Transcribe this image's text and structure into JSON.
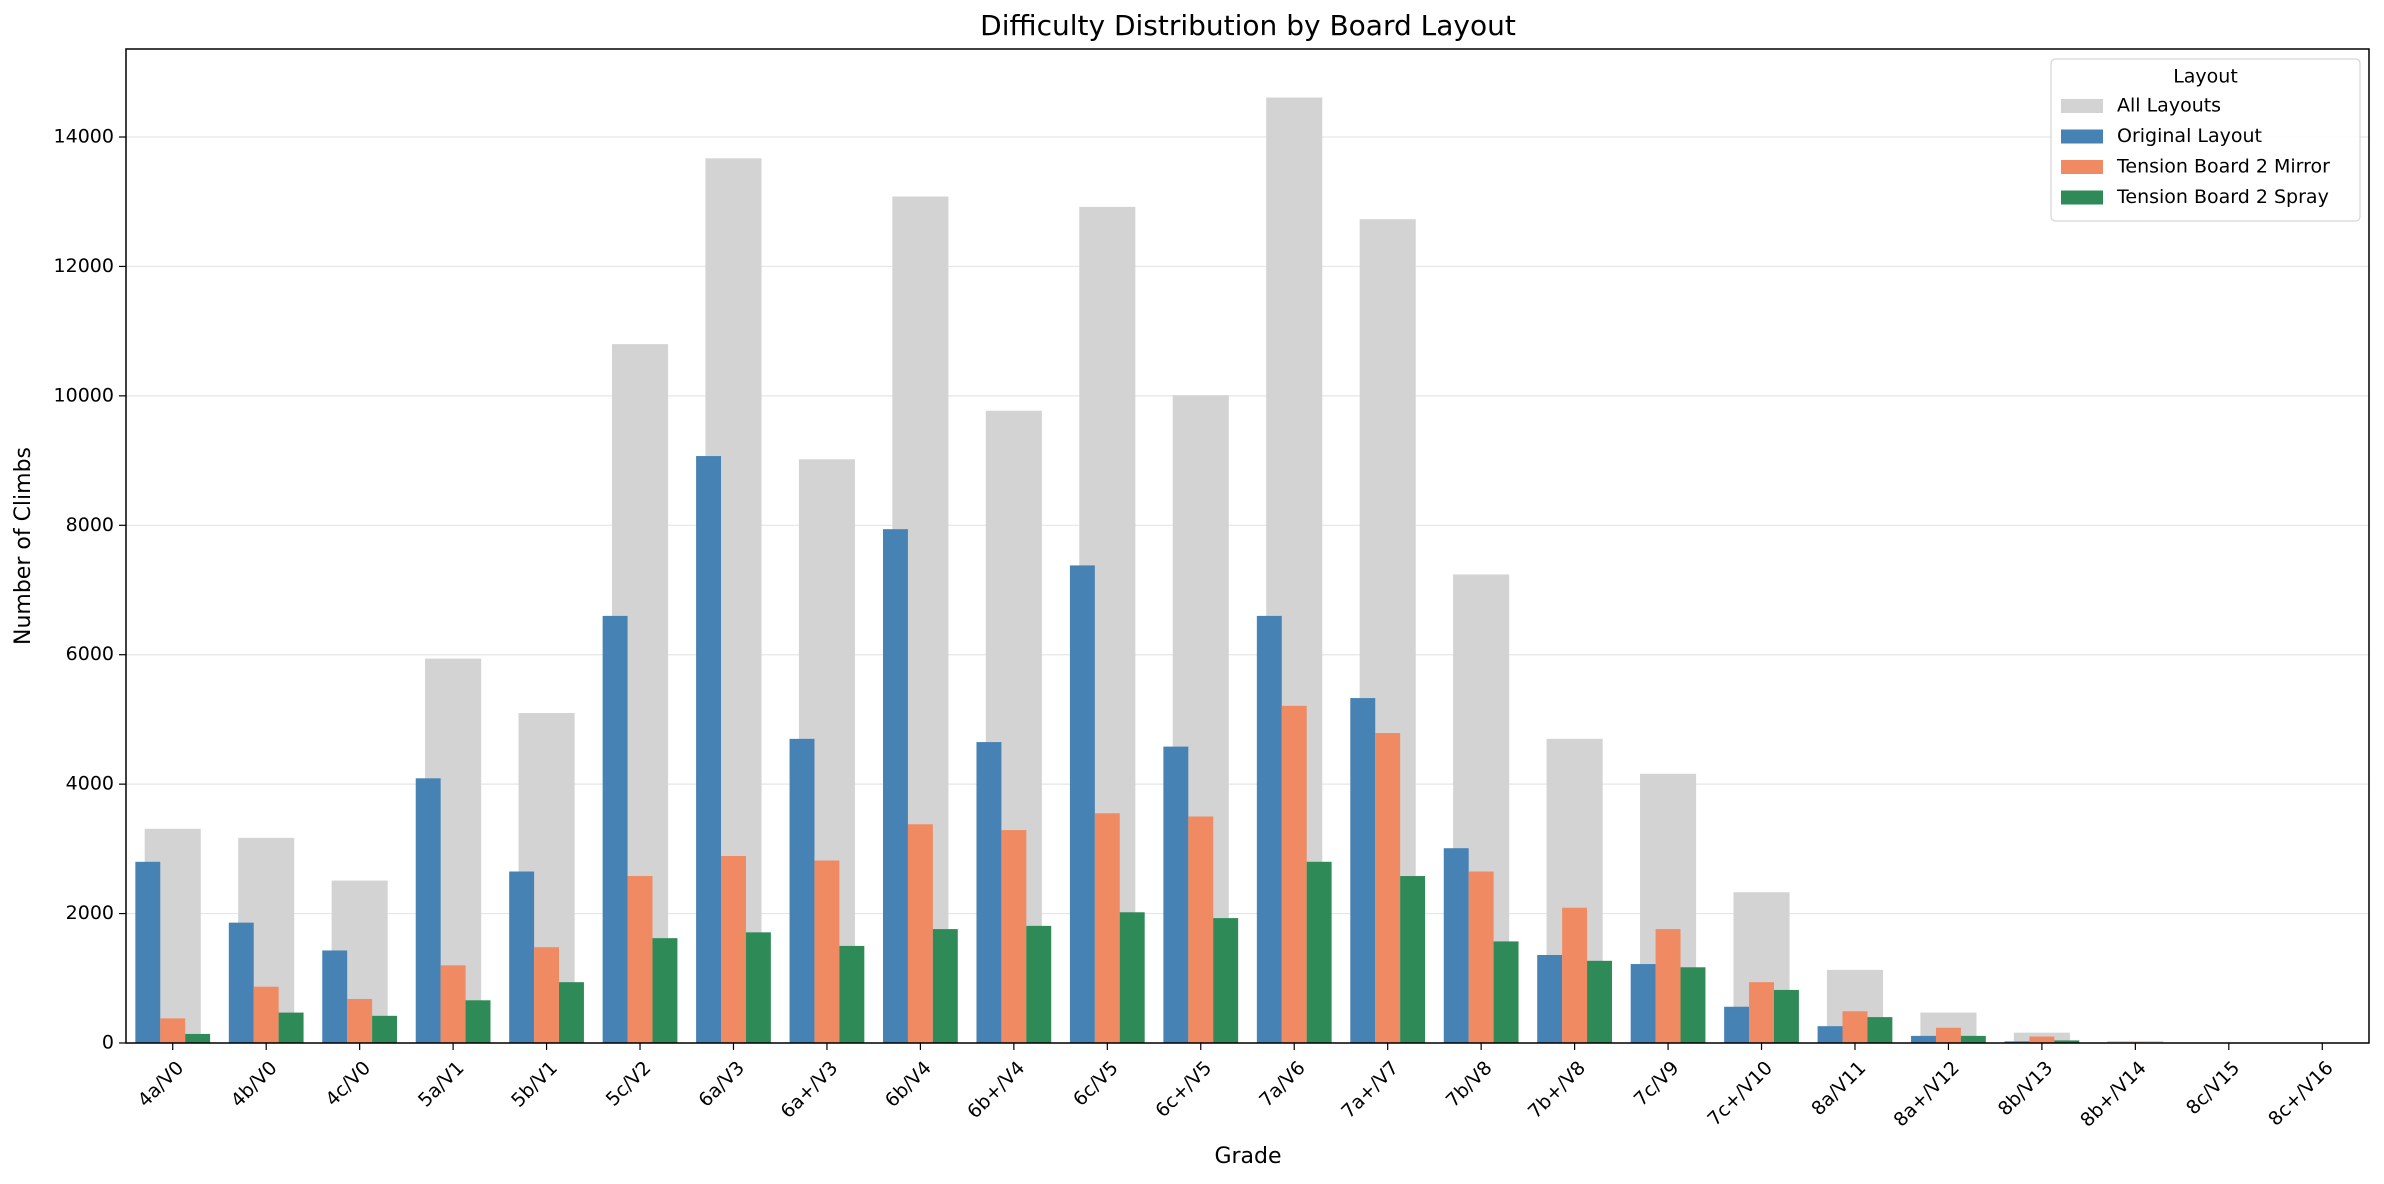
{
  "chart_data": {
    "type": "bar",
    "title": "Difficulty Distribution by Board Layout",
    "x_label": "Grade",
    "y_label": "Number of Climbs",
    "legend_title": "Layout",
    "legend_position": "upper right",
    "grid": true,
    "categories": [
      "4a/V0",
      "4b/V0",
      "4c/V0",
      "5a/V1",
      "5b/V1",
      "5c/V2",
      "6a/V3",
      "6a+/V3",
      "6b/V4",
      "6b+/V4",
      "6c/V5",
      "6c+/V5",
      "7a/V6",
      "7a+/V7",
      "7b/V8",
      "7b+/V8",
      "7c/V9",
      "7c+/V10",
      "8a/V11",
      "8a+/V12",
      "8b/V13",
      "8b+/V14",
      "8c/V15",
      "8c+/V16"
    ],
    "series": [
      {
        "name": "All Layouts",
        "color": "#d3d3d3",
        "values": [
          3310,
          3170,
          2510,
          5940,
          5100,
          10800,
          13670,
          9020,
          13080,
          9770,
          12920,
          10010,
          14610,
          12730,
          7240,
          4700,
          4160,
          2330,
          1130,
          470,
          160,
          30,
          5,
          3
        ]
      },
      {
        "name": "Original Layout",
        "color": "#4682b4",
        "values": [
          2800,
          1860,
          1430,
          4090,
          2650,
          6600,
          9070,
          4700,
          7940,
          4650,
          7380,
          4580,
          6600,
          5330,
          3010,
          1360,
          1220,
          560,
          260,
          110,
          25,
          5,
          1,
          1
        ]
      },
      {
        "name": "Tension Board 2 Mirror",
        "color": "#ef8a62",
        "values": [
          380,
          870,
          680,
          1200,
          1480,
          2580,
          2890,
          2820,
          3380,
          3290,
          3550,
          3500,
          5210,
          4790,
          2650,
          2090,
          1760,
          940,
          490,
          235,
          100,
          10,
          2,
          1
        ]
      },
      {
        "name": "Tension Board 2 Spray",
        "color": "#2e8b57",
        "values": [
          140,
          470,
          420,
          660,
          940,
          1620,
          1710,
          1500,
          1760,
          1810,
          2020,
          1930,
          2800,
          2580,
          1570,
          1270,
          1170,
          820,
          400,
          110,
          40,
          5,
          1,
          1
        ]
      }
    ],
    "ylim": [
      0,
      15360
    ],
    "yticks": [
      0,
      2000,
      4000,
      6000,
      8000,
      10000,
      12000,
      14000
    ]
  }
}
